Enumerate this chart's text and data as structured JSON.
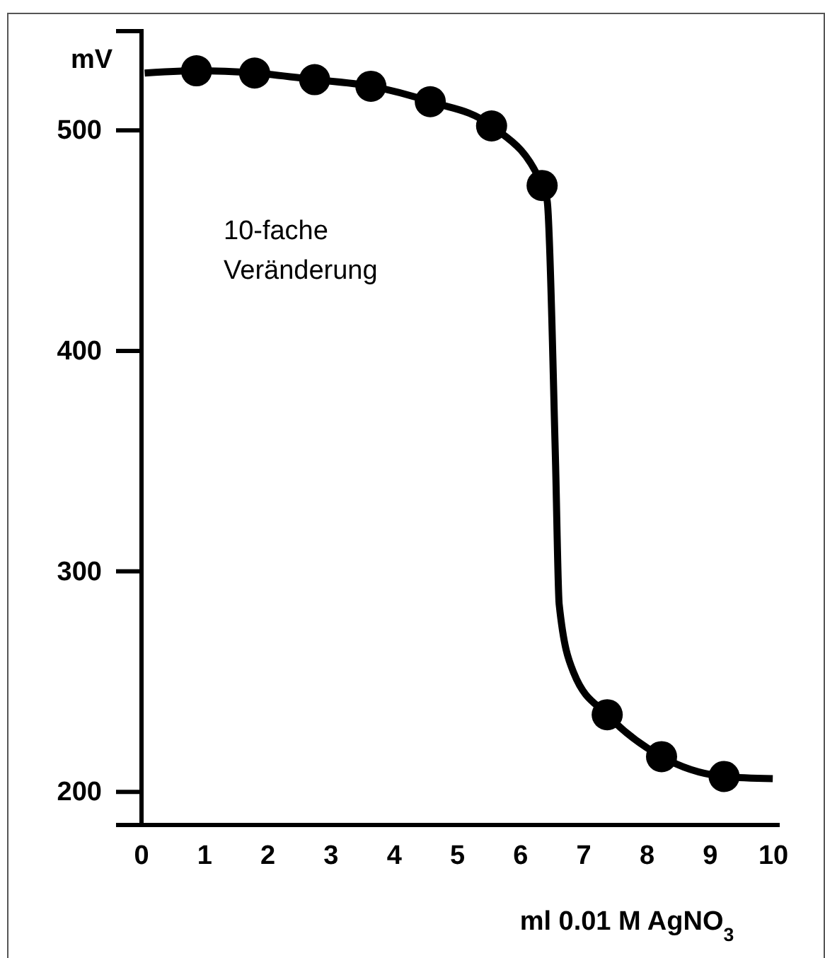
{
  "chart_data": {
    "type": "line",
    "ylabel": "mV",
    "xlabel": "ml 0.01 M AgNO$_{3}$",
    "annotations": [
      "10-fache Veränderung"
    ],
    "xlim": [
      0,
      10.1
    ],
    "xticks": [
      0,
      1,
      2,
      3,
      4,
      5,
      6,
      7,
      8,
      9,
      10
    ],
    "ylim": [
      185,
      545
    ],
    "yticks": [
      200,
      300,
      400,
      500
    ],
    "grid": false,
    "series": [
      {
        "color": "#000000",
        "marker": "none",
        "x": [
          0.05,
          0.87,
          1.79,
          2.74,
          3.63,
          4.57,
          5.54,
          6.34,
          6.42,
          6.55,
          6.61,
          6.84,
          7.37,
          8.23,
          9.22,
          9.99
        ],
        "values": [
          526,
          527,
          526,
          523,
          520,
          513,
          502,
          475,
          468,
          352,
          285,
          254,
          235,
          216,
          207,
          206
        ]
      },
      {
        "type": "scatter",
        "color": "#000000",
        "marker": "circle",
        "x": [
          0.87,
          1.79,
          2.74,
          3.63,
          4.57,
          5.54,
          6.34,
          7.37,
          8.23,
          9.22
        ],
        "values": [
          527,
          526,
          523,
          520,
          513,
          502,
          475,
          235,
          216,
          207
        ]
      }
    ]
  }
}
